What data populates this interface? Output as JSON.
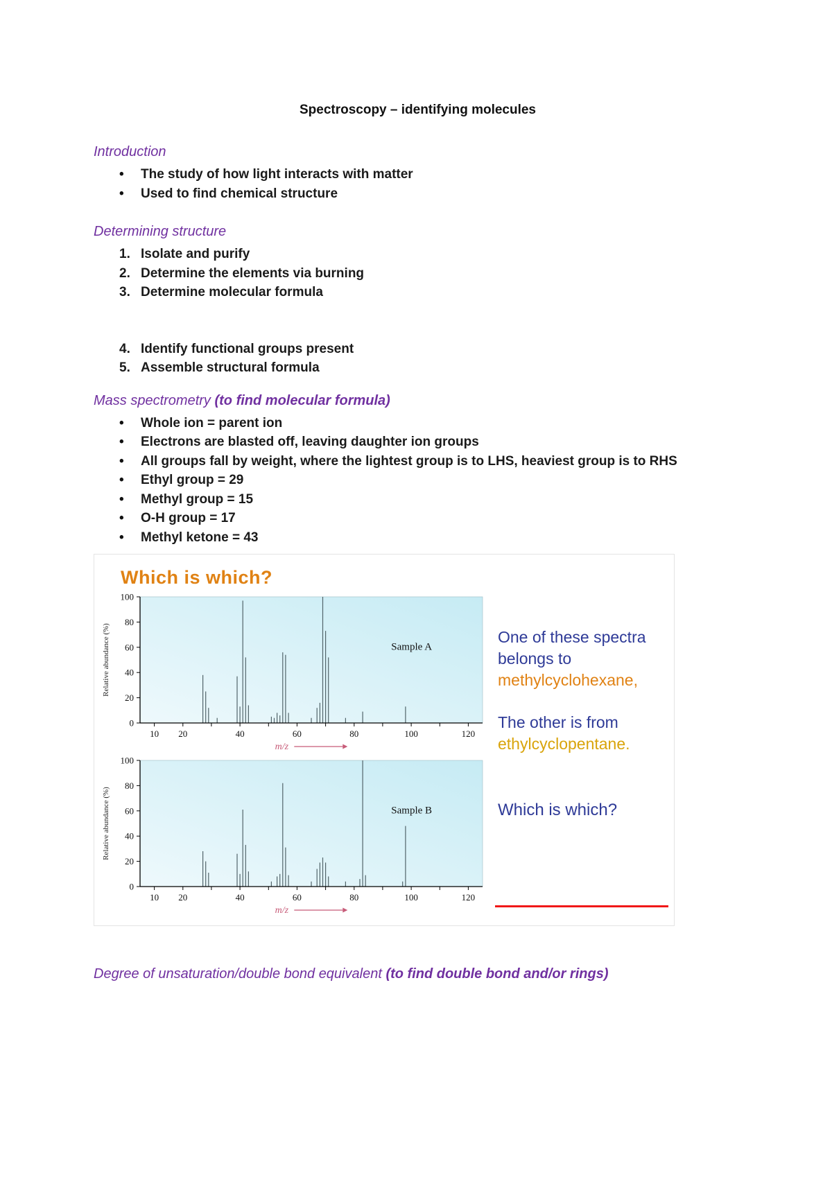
{
  "page": {
    "title": "Spectroscopy – identifying molecules"
  },
  "sections": {
    "intro": {
      "heading": "Introduction",
      "bullets": [
        "The study of how light interacts with matter",
        "Used to find chemical structure"
      ]
    },
    "determining": {
      "heading": "Determining structure",
      "steps_first": [
        {
          "num": "1.",
          "text": "Isolate and purify"
        },
        {
          "num": "2.",
          "text": "Determine the elements via burning"
        },
        {
          "num": "3.",
          "text": "Determine molecular formula"
        }
      ],
      "steps_second": [
        {
          "num": "4.",
          "text": "Identify functional groups present"
        },
        {
          "num": "5.",
          "text": "Assemble structural formula"
        }
      ]
    },
    "mass_spec": {
      "heading_main": "Mass spectrometry ",
      "heading_bold": "(to find molecular formula)",
      "bullets": [
        {
          "pre": "Whole ion = ",
          "strong": "parent ion",
          "post": ""
        },
        {
          "pre": "Electrons are blasted off, leaving ",
          "strong": "daughter ion",
          "post": " groups"
        },
        {
          "pre": "All groups fall by weight, where the lightest group is to LHS, heaviest group is to RHS",
          "strong": "",
          "post": ""
        },
        {
          "pre": "Ethyl group = 29",
          "strong": "",
          "post": ""
        },
        {
          "pre": "Methyl group = 15",
          "strong": "",
          "post": ""
        },
        {
          "pre": "O-H group = 17",
          "strong": "",
          "post": ""
        },
        {
          "pre": "Methyl ketone = 43",
          "strong": "",
          "post": ""
        }
      ]
    },
    "degree": {
      "heading_main": "Degree of unsaturation/double bond equivalent ",
      "heading_bold": "(to find double bond and/or rings)"
    }
  },
  "figure": {
    "heading": "Which is which?",
    "right": {
      "line1": "One of these spectra belongs to",
      "compound1": "methylcyclohexane,",
      "line2": "The other is from",
      "compound2": "ethylcyclopentane.",
      "question": "Which is which?"
    },
    "colors": {
      "purple": "#7030A0",
      "orange": "#E08214",
      "gold": "#D9A40B",
      "blue": "#2E3A97",
      "red_line": "#F01818",
      "mz_red": "#C75B78"
    }
  },
  "chart_data": [
    {
      "type": "bar",
      "id": "A",
      "sample_label": "Sample A",
      "xlabel": "m/z",
      "ylabel": "Relative abundance (%)",
      "xlim": [
        5,
        125
      ],
      "ylim": [
        0,
        100
      ],
      "x_ticks": [
        10,
        20,
        40,
        60,
        80,
        100,
        120
      ],
      "y_ticks": [
        0,
        20,
        40,
        60,
        80,
        100
      ],
      "peaks": [
        [
          27,
          38
        ],
        [
          28,
          25
        ],
        [
          29,
          12
        ],
        [
          32,
          4
        ],
        [
          39,
          37
        ],
        [
          40,
          13
        ],
        [
          41,
          97
        ],
        [
          42,
          52
        ],
        [
          43,
          14
        ],
        [
          51,
          5
        ],
        [
          52,
          4
        ],
        [
          53,
          8
        ],
        [
          54,
          6
        ],
        [
          55,
          56
        ],
        [
          56,
          54
        ],
        [
          57,
          8
        ],
        [
          65,
          4
        ],
        [
          67,
          12
        ],
        [
          68,
          16
        ],
        [
          69,
          100
        ],
        [
          70,
          73
        ],
        [
          71,
          52
        ],
        [
          77,
          4
        ],
        [
          83,
          9
        ],
        [
          98,
          13
        ]
      ]
    },
    {
      "type": "bar",
      "id": "B",
      "sample_label": "Sample B",
      "xlabel": "m/z",
      "ylabel": "Relative abundance (%)",
      "xlim": [
        5,
        125
      ],
      "ylim": [
        0,
        100
      ],
      "x_ticks": [
        10,
        20,
        40,
        60,
        80,
        100,
        120
      ],
      "y_ticks": [
        0,
        20,
        40,
        60,
        80,
        100
      ],
      "peaks": [
        [
          27,
          28
        ],
        [
          28,
          20
        ],
        [
          29,
          11
        ],
        [
          39,
          26
        ],
        [
          40,
          10
        ],
        [
          41,
          61
        ],
        [
          42,
          33
        ],
        [
          43,
          12
        ],
        [
          51,
          4
        ],
        [
          53,
          8
        ],
        [
          54,
          10
        ],
        [
          55,
          82
        ],
        [
          56,
          31
        ],
        [
          57,
          9
        ],
        [
          65,
          4
        ],
        [
          67,
          14
        ],
        [
          68,
          19
        ],
        [
          69,
          23
        ],
        [
          70,
          19
        ],
        [
          71,
          8
        ],
        [
          77,
          4
        ],
        [
          82,
          6
        ],
        [
          83,
          100
        ],
        [
          84,
          9
        ],
        [
          97,
          4
        ],
        [
          98,
          48
        ]
      ]
    }
  ]
}
